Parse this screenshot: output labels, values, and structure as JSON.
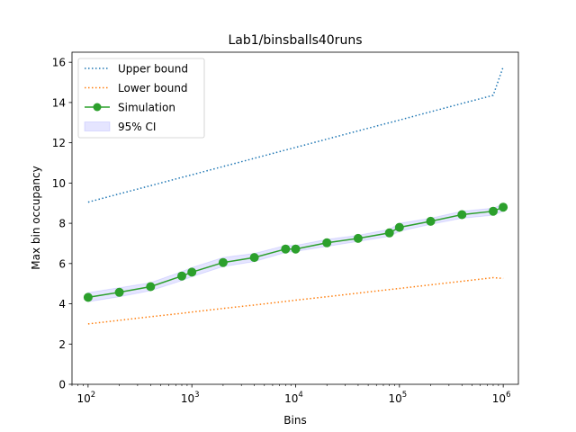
{
  "chart_data": {
    "type": "line",
    "title": "Lab1/binsballs40runs",
    "xlabel": "Bins",
    "ylabel": "Max bin occupancy",
    "xscale": "log",
    "xlim": [
      70,
      1400000
    ],
    "ylim": [
      0,
      16.5
    ],
    "x_ticks": [
      {
        "value": 100,
        "base": "10",
        "exp": "2"
      },
      {
        "value": 1000,
        "base": "10",
        "exp": "3"
      },
      {
        "value": 10000,
        "base": "10",
        "exp": "4"
      },
      {
        "value": 100000,
        "base": "10",
        "exp": "5"
      },
      {
        "value": 1000000,
        "base": "10",
        "exp": "6"
      }
    ],
    "y_ticks": [
      {
        "value": 0,
        "label": "0"
      },
      {
        "value": 2,
        "label": "2"
      },
      {
        "value": 4,
        "label": "4"
      },
      {
        "value": 6,
        "label": "6"
      },
      {
        "value": 8,
        "label": "8"
      },
      {
        "value": 10,
        "label": "10"
      },
      {
        "value": 12,
        "label": "12"
      },
      {
        "value": 14,
        "label": "14"
      },
      {
        "value": 16,
        "label": "16"
      }
    ],
    "grid": false,
    "legend_position": "top-left",
    "x": [
      100,
      200,
      400,
      800,
      1000,
      2000,
      4000,
      8000,
      10000,
      20000,
      40000,
      80000,
      100000,
      200000,
      400000,
      800000,
      1000000
    ],
    "series": [
      {
        "name": "Upper bound",
        "style": "dotted",
        "color": "#1f77b4",
        "values": [
          9.05,
          9.46,
          9.87,
          10.28,
          10.41,
          10.82,
          11.23,
          11.64,
          11.77,
          12.18,
          12.59,
          13.0,
          13.13,
          13.54,
          13.95,
          14.36,
          15.77
        ]
      },
      {
        "name": "Lower bound",
        "style": "dotted",
        "color": "#ff7f0e",
        "values": [
          3.0,
          3.18,
          3.36,
          3.53,
          3.59,
          3.77,
          3.94,
          4.12,
          4.18,
          4.35,
          4.53,
          4.71,
          4.76,
          4.94,
          5.12,
          5.3,
          5.26
        ]
      },
      {
        "name": "Simulation",
        "style": "solid-marker",
        "color": "#2ca02c",
        "values": [
          4.32,
          4.57,
          4.85,
          5.38,
          5.57,
          6.05,
          6.3,
          6.72,
          6.72,
          7.03,
          7.25,
          7.52,
          7.8,
          8.1,
          8.43,
          8.6,
          8.8
        ]
      }
    ],
    "ci": {
      "name": "95% CI",
      "color": "#0000ff",
      "lower": [
        4.1,
        4.35,
        4.65,
        5.15,
        5.35,
        5.85,
        6.1,
        6.55,
        6.6,
        6.85,
        7.1,
        7.35,
        7.6,
        7.95,
        8.25,
        8.4,
        8.6
      ],
      "upper": [
        4.55,
        4.8,
        5.05,
        5.6,
        5.8,
        6.3,
        6.5,
        6.9,
        6.9,
        7.2,
        7.4,
        7.7,
        8.0,
        8.25,
        8.6,
        8.75,
        8.95
      ]
    }
  }
}
